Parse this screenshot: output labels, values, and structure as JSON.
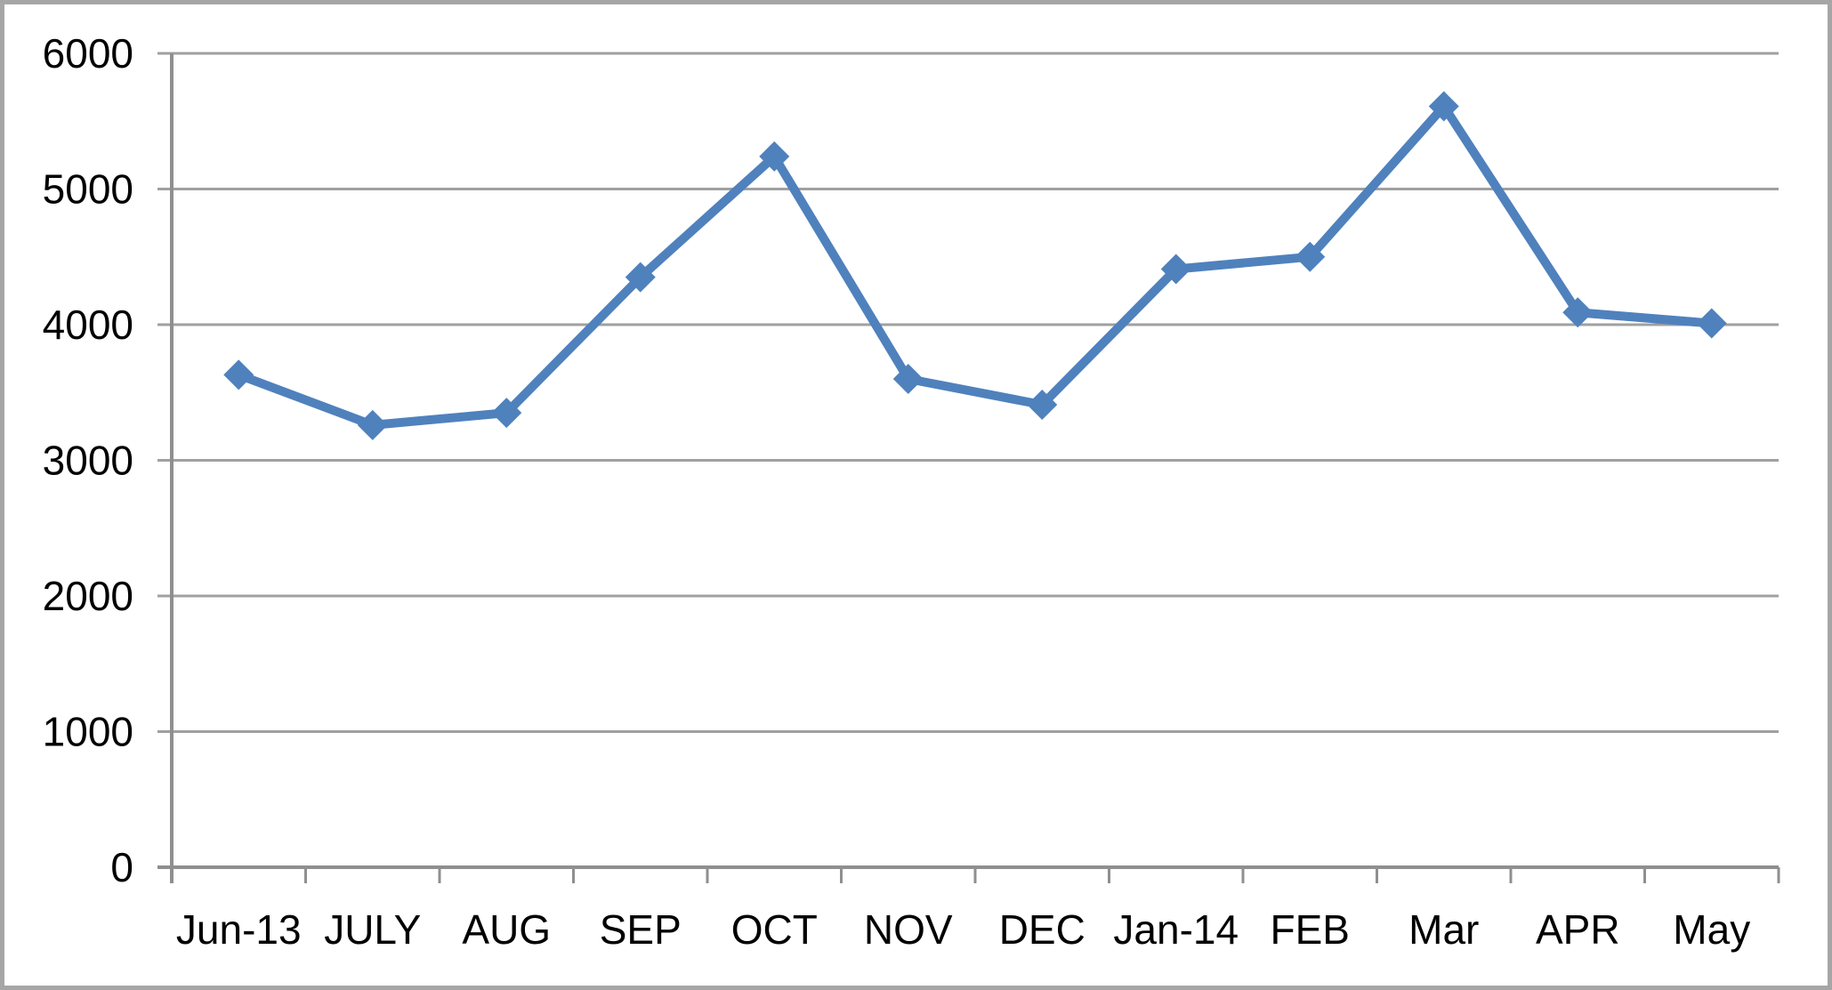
{
  "chart_data": {
    "type": "line",
    "categories": [
      "Jun-13",
      "JULY",
      "AUG",
      "SEP",
      "OCT",
      "NOV",
      "DEC",
      "Jan-14",
      "FEB",
      "Mar",
      "APR",
      "May"
    ],
    "values": [
      3630,
      3260,
      3350,
      4350,
      5240,
      3600,
      3410,
      4410,
      4500,
      5610,
      4090,
      4010
    ],
    "ylim": [
      0,
      6000
    ],
    "yticks": [
      0,
      1000,
      2000,
      3000,
      4000,
      5000,
      6000
    ],
    "grid": "horizontal",
    "legend": "none",
    "marker": "diamond",
    "colors": {
      "line": "#4f81bd",
      "gridline": "#a0a0a0",
      "axis": "#8f8f8f",
      "frame_border": "#a6a6a6",
      "background": "#ffffff",
      "label_text": "#000000"
    }
  }
}
